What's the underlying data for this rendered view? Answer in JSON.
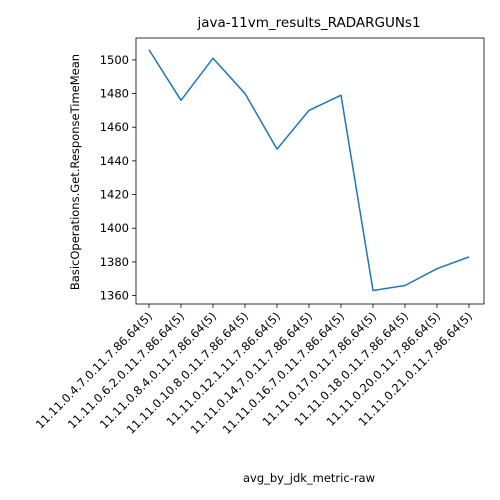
{
  "chart_data": {
    "type": "line",
    "title": "java-11vm_results_RADARGUNs1",
    "xlabel": "avg_by_jdk_metric-raw",
    "ylabel": "BasicOperations.Get.ResponseTimeMean",
    "categories": [
      "11.11.0.4.7.0.11.7.86.64(5)",
      "11.11.0.6.2.0.11.7.86.64(5)",
      "11.11.0.8.4.0.11.7.86.64(5)",
      "11.11.0.10.8.0.11.7.86.64(5)",
      "11.11.0.12.1.11.7.86.64(5)",
      "11.11.0.14.7.0.11.7.86.64(5)",
      "11.11.0.16.7.0.11.7.86.64(5)",
      "11.11.0.17.0.11.7.86.64(5)",
      "11.11.0.18.0.11.7.86.64(5)",
      "11.11.0.20.0.11.7.86.64(5)",
      "11.11.0.21.0.11.7.86.64(5)"
    ],
    "values": [
      1506,
      1476,
      1501,
      1480,
      1447,
      1470,
      1479,
      1363,
      1366,
      1376,
      1383
    ],
    "yticks": [
      1360,
      1380,
      1400,
      1420,
      1440,
      1460,
      1480,
      1500
    ],
    "ylim": [
      1355,
      1513
    ],
    "line_color": "#1f77b4",
    "grid": false
  }
}
